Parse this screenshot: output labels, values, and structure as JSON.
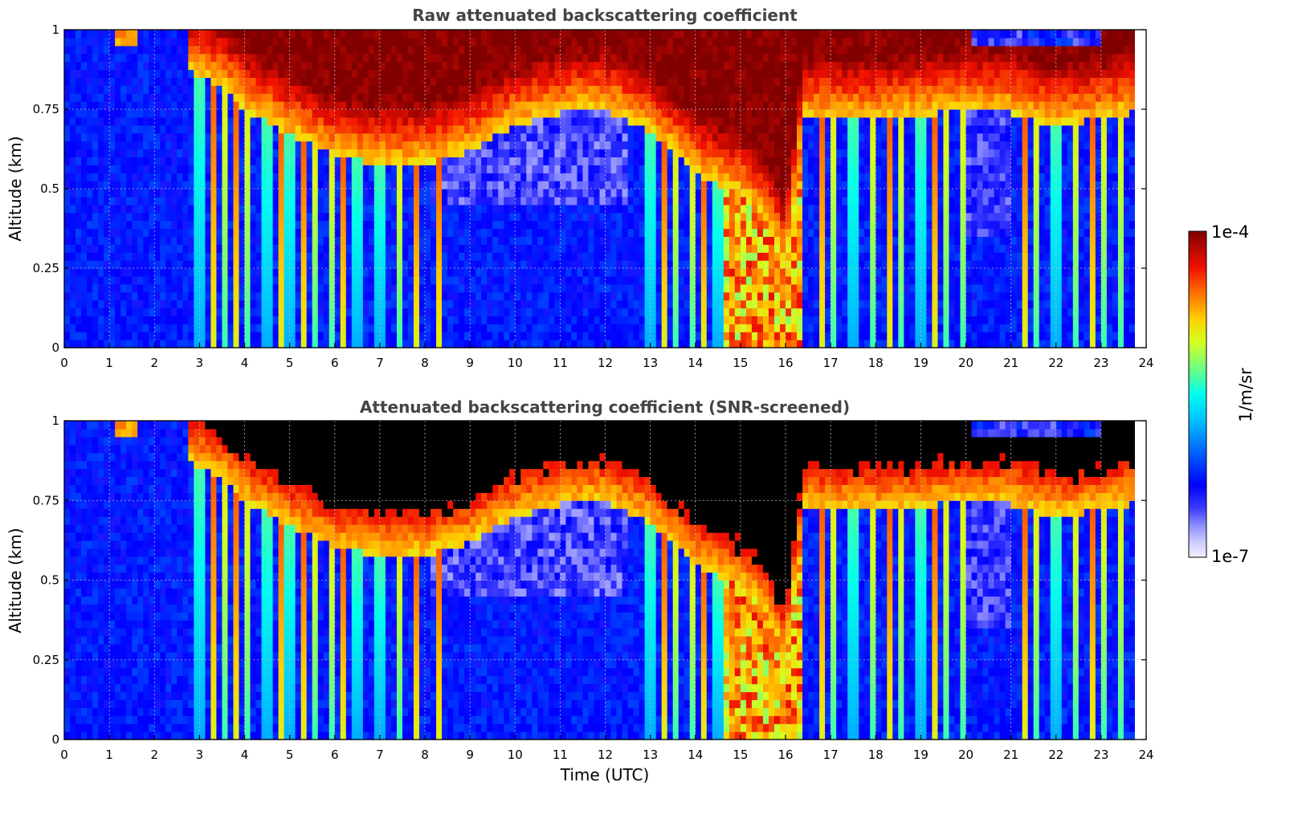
{
  "chart_data": [
    {
      "type": "heatmap",
      "title": "Raw attenuated backscattering coefficient",
      "xlabel": "",
      "ylabel": "Altitude (km)",
      "xlim": [
        0,
        24
      ],
      "ylim": [
        0,
        1
      ],
      "x_ticks": [
        "0",
        "1",
        "2",
        "3",
        "4",
        "5",
        "6",
        "7",
        "8",
        "9",
        "10",
        "11",
        "12",
        "13",
        "14",
        "15",
        "16",
        "17",
        "18",
        "19",
        "20",
        "21",
        "22",
        "23",
        "24"
      ],
      "y_ticks": [
        "0",
        "0.25",
        "0.5",
        "0.75",
        "1"
      ],
      "grid": true,
      "data_end_time": 23.75,
      "cloud_base_profile": {
        "time": [
          1.1,
          1.5,
          2.7,
          3.0,
          3.5,
          4.0,
          5.0,
          6.0,
          7.0,
          8.0,
          9.0,
          10.0,
          11.0,
          12.0,
          13.0,
          14.0,
          15.0,
          15.5,
          16.0,
          16.4,
          17.0,
          18.0,
          19.0,
          20.0,
          21.0,
          22.0,
          23.0,
          23.7
        ],
        "altitude_km": [
          0.95,
          0.95,
          0.87,
          0.86,
          0.82,
          0.75,
          0.67,
          0.6,
          0.58,
          0.58,
          0.62,
          0.7,
          0.74,
          0.75,
          0.68,
          0.55,
          0.48,
          0.42,
          0.26,
          0.72,
          0.72,
          0.72,
          0.73,
          0.75,
          0.74,
          0.7,
          0.72,
          0.74
        ]
      },
      "cloud_top_profile_km": 1.0,
      "colorscale": "jet",
      "background_level": "1e-6 to 1e-7 (blue / pale)"
    },
    {
      "type": "heatmap",
      "title": "Attenuated backscattering coefficient (SNR-screened)",
      "xlabel": "Time (UTC)",
      "ylabel": "Altitude (km)",
      "xlim": [
        0,
        24
      ],
      "ylim": [
        0,
        1
      ],
      "x_ticks": [
        "0",
        "1",
        "2",
        "3",
        "4",
        "5",
        "6",
        "7",
        "8",
        "9",
        "10",
        "11",
        "12",
        "13",
        "14",
        "15",
        "16",
        "17",
        "18",
        "19",
        "20",
        "21",
        "22",
        "23",
        "24"
      ],
      "y_ticks": [
        "0",
        "0.25",
        "0.5",
        "0.75",
        "1"
      ],
      "grid": true,
      "data_end_time": 23.75,
      "screened_color": "#000000",
      "note_visual": "strong-signal core shown in black"
    }
  ],
  "colorbar": {
    "label": "1/m/sr",
    "max_label": "1e-4",
    "min_label": "1e-7",
    "scale": "log",
    "colors": [
      "#f2f2ff",
      "#c8c8ff",
      "#9696ff",
      "#5050ff",
      "#0000ff",
      "#0060ff",
      "#00b4ff",
      "#00ffff",
      "#50ffaa",
      "#b4ff50",
      "#ffff00",
      "#ffb400",
      "#ff5a00",
      "#e10000",
      "#800000"
    ]
  }
}
